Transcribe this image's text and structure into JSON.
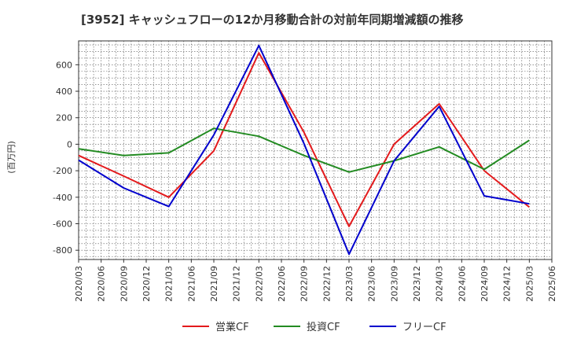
{
  "chart_data": {
    "type": "line",
    "title": "[3952]  キャッシュフローの12か月移動合計の対前年同期増減額の推移",
    "ylabel": "(百万円)",
    "xlabel": "",
    "x": [
      "2020/03",
      "2020/06",
      "2020/09",
      "2020/12",
      "2021/03",
      "2021/06",
      "2021/09",
      "2021/12",
      "2022/03",
      "2022/06",
      "2022/09",
      "2022/12",
      "2023/03",
      "2023/06",
      "2023/09",
      "2023/12",
      "2024/03",
      "2024/06",
      "2024/09",
      "2024/12",
      "2025/03",
      "2025/06"
    ],
    "ylim": [
      -870,
      780
    ],
    "yticks": [
      600,
      400,
      200,
      0,
      -200,
      -400,
      -600,
      -800
    ],
    "grid": true,
    "legend_position": "bottom",
    "series": [
      {
        "name": "営業CF",
        "color": "#e31a1c",
        "points": [
          [
            "2020/03",
            -85
          ],
          [
            "2020/09",
            -240
          ],
          [
            "2021/03",
            -400
          ],
          [
            "2021/09",
            -50
          ],
          [
            "2022/03",
            690
          ],
          [
            "2022/09",
            90
          ],
          [
            "2023/03",
            -620
          ],
          [
            "2023/09",
            0
          ],
          [
            "2024/03",
            305
          ],
          [
            "2024/09",
            -200
          ],
          [
            "2025/03",
            -475
          ]
        ]
      },
      {
        "name": "投資CF",
        "color": "#238b22",
        "points": [
          [
            "2020/03",
            -35
          ],
          [
            "2020/09",
            -85
          ],
          [
            "2021/03",
            -65
          ],
          [
            "2021/09",
            120
          ],
          [
            "2022/03",
            60
          ],
          [
            "2022/09",
            -85
          ],
          [
            "2023/03",
            -210
          ],
          [
            "2023/09",
            -125
          ],
          [
            "2024/03",
            -20
          ],
          [
            "2024/09",
            -190
          ],
          [
            "2025/03",
            30
          ]
        ]
      },
      {
        "name": "フリーCF",
        "color": "#0000cd",
        "points": [
          [
            "2020/03",
            -120
          ],
          [
            "2020/09",
            -330
          ],
          [
            "2021/03",
            -470
          ],
          [
            "2021/09",
            70
          ],
          [
            "2022/03",
            745
          ],
          [
            "2022/09",
            5
          ],
          [
            "2023/03",
            -830
          ],
          [
            "2023/09",
            -125
          ],
          [
            "2024/03",
            285
          ],
          [
            "2024/09",
            -390
          ],
          [
            "2025/03",
            -450
          ]
        ]
      }
    ]
  }
}
